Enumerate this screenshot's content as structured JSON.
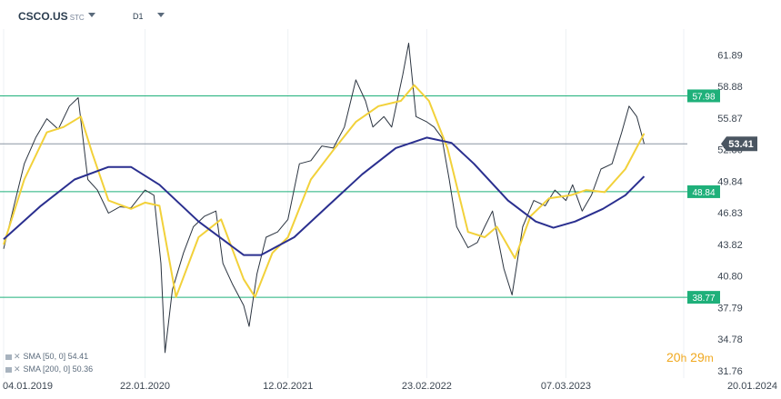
{
  "header": {
    "symbol": "CSCO.US",
    "market": "STC",
    "timeframe": "D1"
  },
  "indicators": [
    {
      "label": "SMA [50, 0] 54.41",
      "color": "#f2d13a"
    },
    {
      "label": "SMA [200, 0] 50.36",
      "color": "#2a2f8f"
    }
  ],
  "timer": {
    "hours": "20",
    "h_unit": "h",
    "minutes": "29",
    "m_unit": "m"
  },
  "colors": {
    "price": "#2b3440",
    "sma50": "#f2d13a",
    "sma200": "#2a2f8f",
    "level": "#1fb07a",
    "current": "#8a96a3",
    "current_tag": "#4a5561"
  },
  "chart_data": {
    "type": "line",
    "ylim": [
      31.76,
      64.0
    ],
    "xlim": [
      "2019-01-04",
      "2024-01-20"
    ],
    "yticks": [
      "61.89",
      "58.88",
      "55.87",
      "52.86",
      "49.84",
      "46.83",
      "43.82",
      "40.80",
      "37.79",
      "34.78",
      "31.76"
    ],
    "xticks": [
      {
        "date": "2019-01-04",
        "label": "04.01.2019"
      },
      {
        "date": "2020-01-22",
        "label": "22.01.2020"
      },
      {
        "date": "2021-02-12",
        "label": "12.02.2021"
      },
      {
        "date": "2022-02-23",
        "label": "23.02.2022"
      },
      {
        "date": "2023-03-07",
        "label": "07.03.2023"
      },
      {
        "date": "2024-01-20",
        "label": "20.01.2024"
      }
    ],
    "levels": [
      {
        "value": 57.98,
        "label": "57.98"
      },
      {
        "value": 48.84,
        "label": "48.84"
      },
      {
        "value": 38.77,
        "label": "38.77"
      }
    ],
    "current": {
      "value": 53.41,
      "label": "53.41"
    },
    "series": [
      {
        "name": "CSCO.US",
        "points": [
          [
            "2019-01-04",
            43.4
          ],
          [
            "2019-02-01",
            47.5
          ],
          [
            "2019-03-01",
            51.5
          ],
          [
            "2019-04-01",
            54.0
          ],
          [
            "2019-05-01",
            55.8
          ],
          [
            "2019-06-01",
            54.8
          ],
          [
            "2019-07-01",
            57.0
          ],
          [
            "2019-07-25",
            57.8
          ],
          [
            "2019-08-20",
            50.0
          ],
          [
            "2019-09-15",
            49.0
          ],
          [
            "2019-10-15",
            46.8
          ],
          [
            "2019-11-15",
            47.4
          ],
          [
            "2019-12-15",
            47.3
          ],
          [
            "2020-01-22",
            49.0
          ],
          [
            "2020-02-15",
            48.5
          ],
          [
            "2020-03-05",
            42.0
          ],
          [
            "2020-03-16",
            33.5
          ],
          [
            "2020-04-05",
            39.5
          ],
          [
            "2020-05-05",
            43.0
          ],
          [
            "2020-06-01",
            45.5
          ],
          [
            "2020-07-01",
            46.5
          ],
          [
            "2020-08-01",
            47.0
          ],
          [
            "2020-08-20",
            42.0
          ],
          [
            "2020-09-15",
            40.0
          ],
          [
            "2020-10-15",
            38.0
          ],
          [
            "2020-10-30",
            36.0
          ],
          [
            "2020-11-20",
            41.0
          ],
          [
            "2020-12-15",
            44.5
          ],
          [
            "2021-01-15",
            45.0
          ],
          [
            "2021-02-12",
            46.2
          ],
          [
            "2021-03-15",
            51.5
          ],
          [
            "2021-04-15",
            51.8
          ],
          [
            "2021-05-15",
            53.2
          ],
          [
            "2021-06-15",
            53.0
          ],
          [
            "2021-07-15",
            55.0
          ],
          [
            "2021-08-15",
            59.5
          ],
          [
            "2021-09-10",
            57.5
          ],
          [
            "2021-09-30",
            55.0
          ],
          [
            "2021-10-30",
            56.0
          ],
          [
            "2021-11-20",
            55.0
          ],
          [
            "2021-12-20",
            60.0
          ],
          [
            "2022-01-05",
            63.0
          ],
          [
            "2022-01-25",
            56.0
          ],
          [
            "2022-02-23",
            55.5
          ],
          [
            "2022-03-15",
            55.0
          ],
          [
            "2022-04-05",
            54.0
          ],
          [
            "2022-04-25",
            50.0
          ],
          [
            "2022-05-15",
            45.5
          ],
          [
            "2022-06-15",
            43.5
          ],
          [
            "2022-07-10",
            44.0
          ],
          [
            "2022-07-30",
            45.5
          ],
          [
            "2022-08-20",
            47.0
          ],
          [
            "2022-09-20",
            41.5
          ],
          [
            "2022-10-12",
            39.0
          ],
          [
            "2022-11-10",
            45.5
          ],
          [
            "2022-12-10",
            48.0
          ],
          [
            "2023-01-10",
            47.5
          ],
          [
            "2023-02-05",
            49.0
          ],
          [
            "2023-03-07",
            48.0
          ],
          [
            "2023-03-25",
            49.5
          ],
          [
            "2023-04-20",
            47.0
          ],
          [
            "2023-05-15",
            48.5
          ],
          [
            "2023-06-10",
            51.0
          ],
          [
            "2023-07-10",
            51.5
          ],
          [
            "2023-08-05",
            54.5
          ],
          [
            "2023-08-25",
            57.0
          ],
          [
            "2023-09-15",
            56.0
          ],
          [
            "2023-10-05",
            53.4
          ]
        ]
      },
      {
        "name": "SMA [50, 0]",
        "points": [
          [
            "2019-01-04",
            43.8
          ],
          [
            "2019-03-01",
            50.0
          ],
          [
            "2019-05-01",
            54.5
          ],
          [
            "2019-06-15",
            55.0
          ],
          [
            "2019-08-01",
            56.0
          ],
          [
            "2019-09-01",
            52.5
          ],
          [
            "2019-10-15",
            48.0
          ],
          [
            "2019-12-15",
            47.2
          ],
          [
            "2020-01-22",
            47.8
          ],
          [
            "2020-03-01",
            47.5
          ],
          [
            "2020-04-15",
            38.8
          ],
          [
            "2020-06-15",
            44.5
          ],
          [
            "2020-08-15",
            46.2
          ],
          [
            "2020-10-15",
            40.5
          ],
          [
            "2020-11-15",
            38.8
          ],
          [
            "2021-01-01",
            43.0
          ],
          [
            "2021-02-12",
            44.5
          ],
          [
            "2021-04-15",
            50.0
          ],
          [
            "2021-06-15",
            52.8
          ],
          [
            "2021-08-15",
            55.5
          ],
          [
            "2021-10-15",
            57.0
          ],
          [
            "2021-12-15",
            57.5
          ],
          [
            "2022-01-20",
            59.0
          ],
          [
            "2022-03-01",
            57.5
          ],
          [
            "2022-04-20",
            53.0
          ],
          [
            "2022-06-15",
            45.0
          ],
          [
            "2022-07-30",
            44.5
          ],
          [
            "2022-09-01",
            45.5
          ],
          [
            "2022-10-20",
            42.5
          ],
          [
            "2022-12-01",
            46.5
          ],
          [
            "2023-01-20",
            48.2
          ],
          [
            "2023-03-20",
            48.5
          ],
          [
            "2023-05-01",
            49.0
          ],
          [
            "2023-06-20",
            48.8
          ],
          [
            "2023-08-15",
            51.0
          ],
          [
            "2023-10-05",
            54.4
          ]
        ]
      },
      {
        "name": "SMA [200, 0]",
        "points": [
          [
            "2019-01-04",
            44.3
          ],
          [
            "2019-04-15",
            47.5
          ],
          [
            "2019-07-15",
            50.0
          ],
          [
            "2019-10-15",
            51.2
          ],
          [
            "2019-12-15",
            51.2
          ],
          [
            "2020-03-01",
            49.5
          ],
          [
            "2020-06-15",
            46.0
          ],
          [
            "2020-10-15",
            42.8
          ],
          [
            "2020-12-01",
            42.8
          ],
          [
            "2021-03-01",
            44.5
          ],
          [
            "2021-06-01",
            47.5
          ],
          [
            "2021-09-01",
            50.5
          ],
          [
            "2021-12-01",
            53.0
          ],
          [
            "2022-02-23",
            54.0
          ],
          [
            "2022-05-01",
            53.5
          ],
          [
            "2022-07-01",
            51.5
          ],
          [
            "2022-10-01",
            48.0
          ],
          [
            "2022-12-15",
            46.0
          ],
          [
            "2023-02-01",
            45.4
          ],
          [
            "2023-04-01",
            46.0
          ],
          [
            "2023-06-15",
            47.2
          ],
          [
            "2023-08-15",
            48.5
          ],
          [
            "2023-10-05",
            50.3
          ]
        ]
      }
    ]
  }
}
